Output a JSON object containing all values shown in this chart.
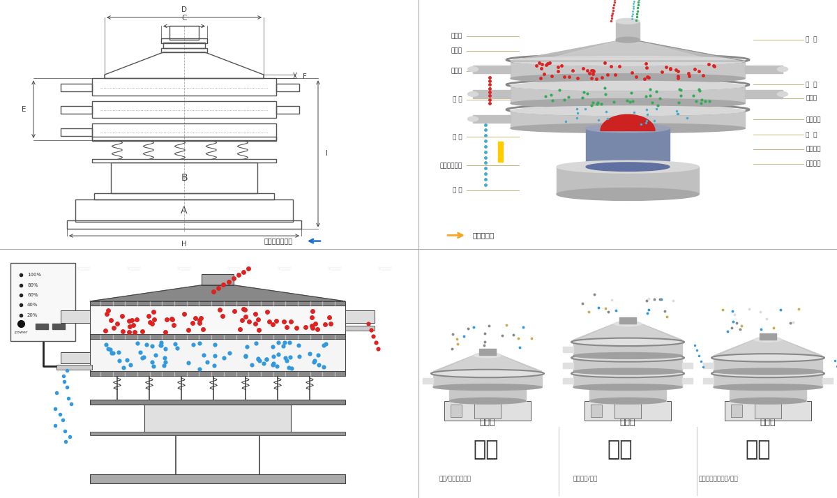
{
  "bg_color": "#ffffff",
  "tl_bg": "#f5f7fa",
  "tr_bg": "#f5f7fa",
  "bl_bg": "#ffffff",
  "br_bg": "#ffffff",
  "schematic_line_color": "#555555",
  "schematic_dim_color": "#444444",
  "dim_letters": [
    "D",
    "C",
    "F",
    "E",
    "B",
    "A",
    "H",
    "I"
  ],
  "outer_text": "外形尺寸示意图",
  "struct_text": "结构示意图",
  "label_left": [
    "进料口",
    "防尘盖",
    "出料口",
    "束 环",
    "弹 簧",
    "运输固定螺栓",
    "机 座"
  ],
  "label_right": [
    "筛  网",
    "网  架",
    "加重块",
    "上部重锤",
    "筛  盘",
    "振动电机",
    "下部重锤"
  ],
  "type_labels": [
    "单层式",
    "三层式",
    "双层式"
  ],
  "big_labels": [
    "分级",
    "过滤",
    "除杂"
  ],
  "sub_labels": [
    "颗粒/粉末准确分级",
    "去除异物/结块",
    "去除液体中的颗粒/异物"
  ],
  "blue_arrow_color": "#1a6fcc",
  "orange_arrow_color": "#f5a623",
  "red_dot": "#dd2222",
  "blue_dot": "#3399dd",
  "tan_line": "#c8b878",
  "gray_machine": "#c0c0c0"
}
